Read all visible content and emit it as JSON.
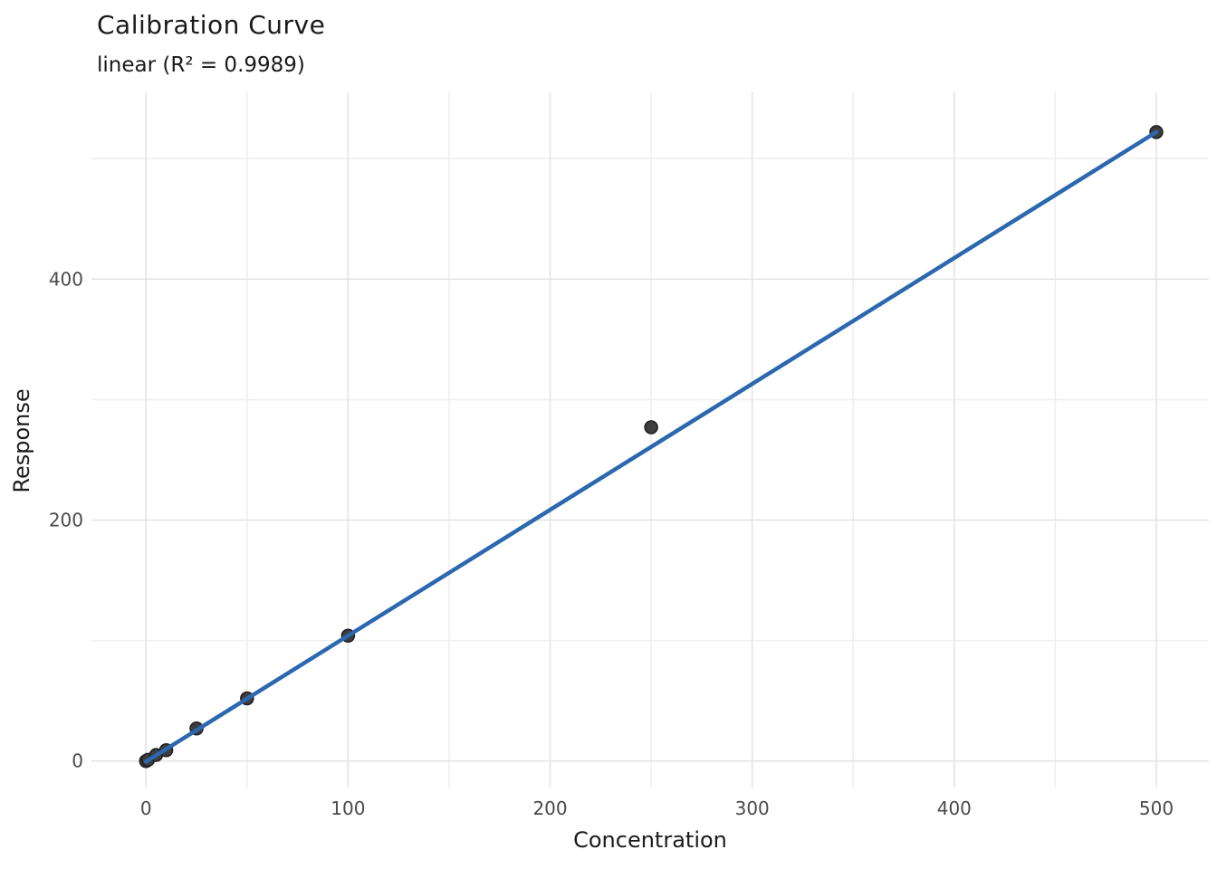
{
  "figure": {
    "title": "Calibration Curve",
    "subtitle": "linear (R² = 0.9989)"
  },
  "colors": {
    "background": "#ffffff",
    "grid_major": "#e4e4e4",
    "grid_minor": "#efefef",
    "fit_line": "#2b68b0",
    "point_fill": "#3d3d3d",
    "point_edge": "#1f1f1f",
    "tick_label": "#4a4a4a",
    "axis_label": "#1b1b1b"
  },
  "chart_data": {
    "type": "scatter",
    "title": "Calibration Curve",
    "subtitle": "linear (R² = 0.9989)",
    "xlabel": "Concentration",
    "ylabel": "Response",
    "x_ticks": [
      0,
      100,
      200,
      300,
      400,
      500
    ],
    "x_minor_ticks": [
      50,
      150,
      250,
      350,
      450
    ],
    "y_ticks": [
      0,
      200,
      400
    ],
    "y_minor_ticks": [
      100,
      300,
      500
    ],
    "xlim": [
      -27,
      526
    ],
    "ylim": [
      -22,
      555
    ],
    "grid": "major+minor",
    "legend": "none",
    "points": [
      {
        "x": 0,
        "y": 0
      },
      {
        "x": 1,
        "y": 1
      },
      {
        "x": 5,
        "y": 5
      },
      {
        "x": 10,
        "y": 9
      },
      {
        "x": 25,
        "y": 27
      },
      {
        "x": 50,
        "y": 52
      },
      {
        "x": 100,
        "y": 104
      },
      {
        "x": 250,
        "y": 277
      },
      {
        "x": 500,
        "y": 522
      }
    ],
    "fit_line": {
      "model": "linear",
      "slope": 1.045,
      "intercept": -0.5,
      "r_squared": 0.9989,
      "x_start": 0,
      "x_end": 500
    }
  }
}
